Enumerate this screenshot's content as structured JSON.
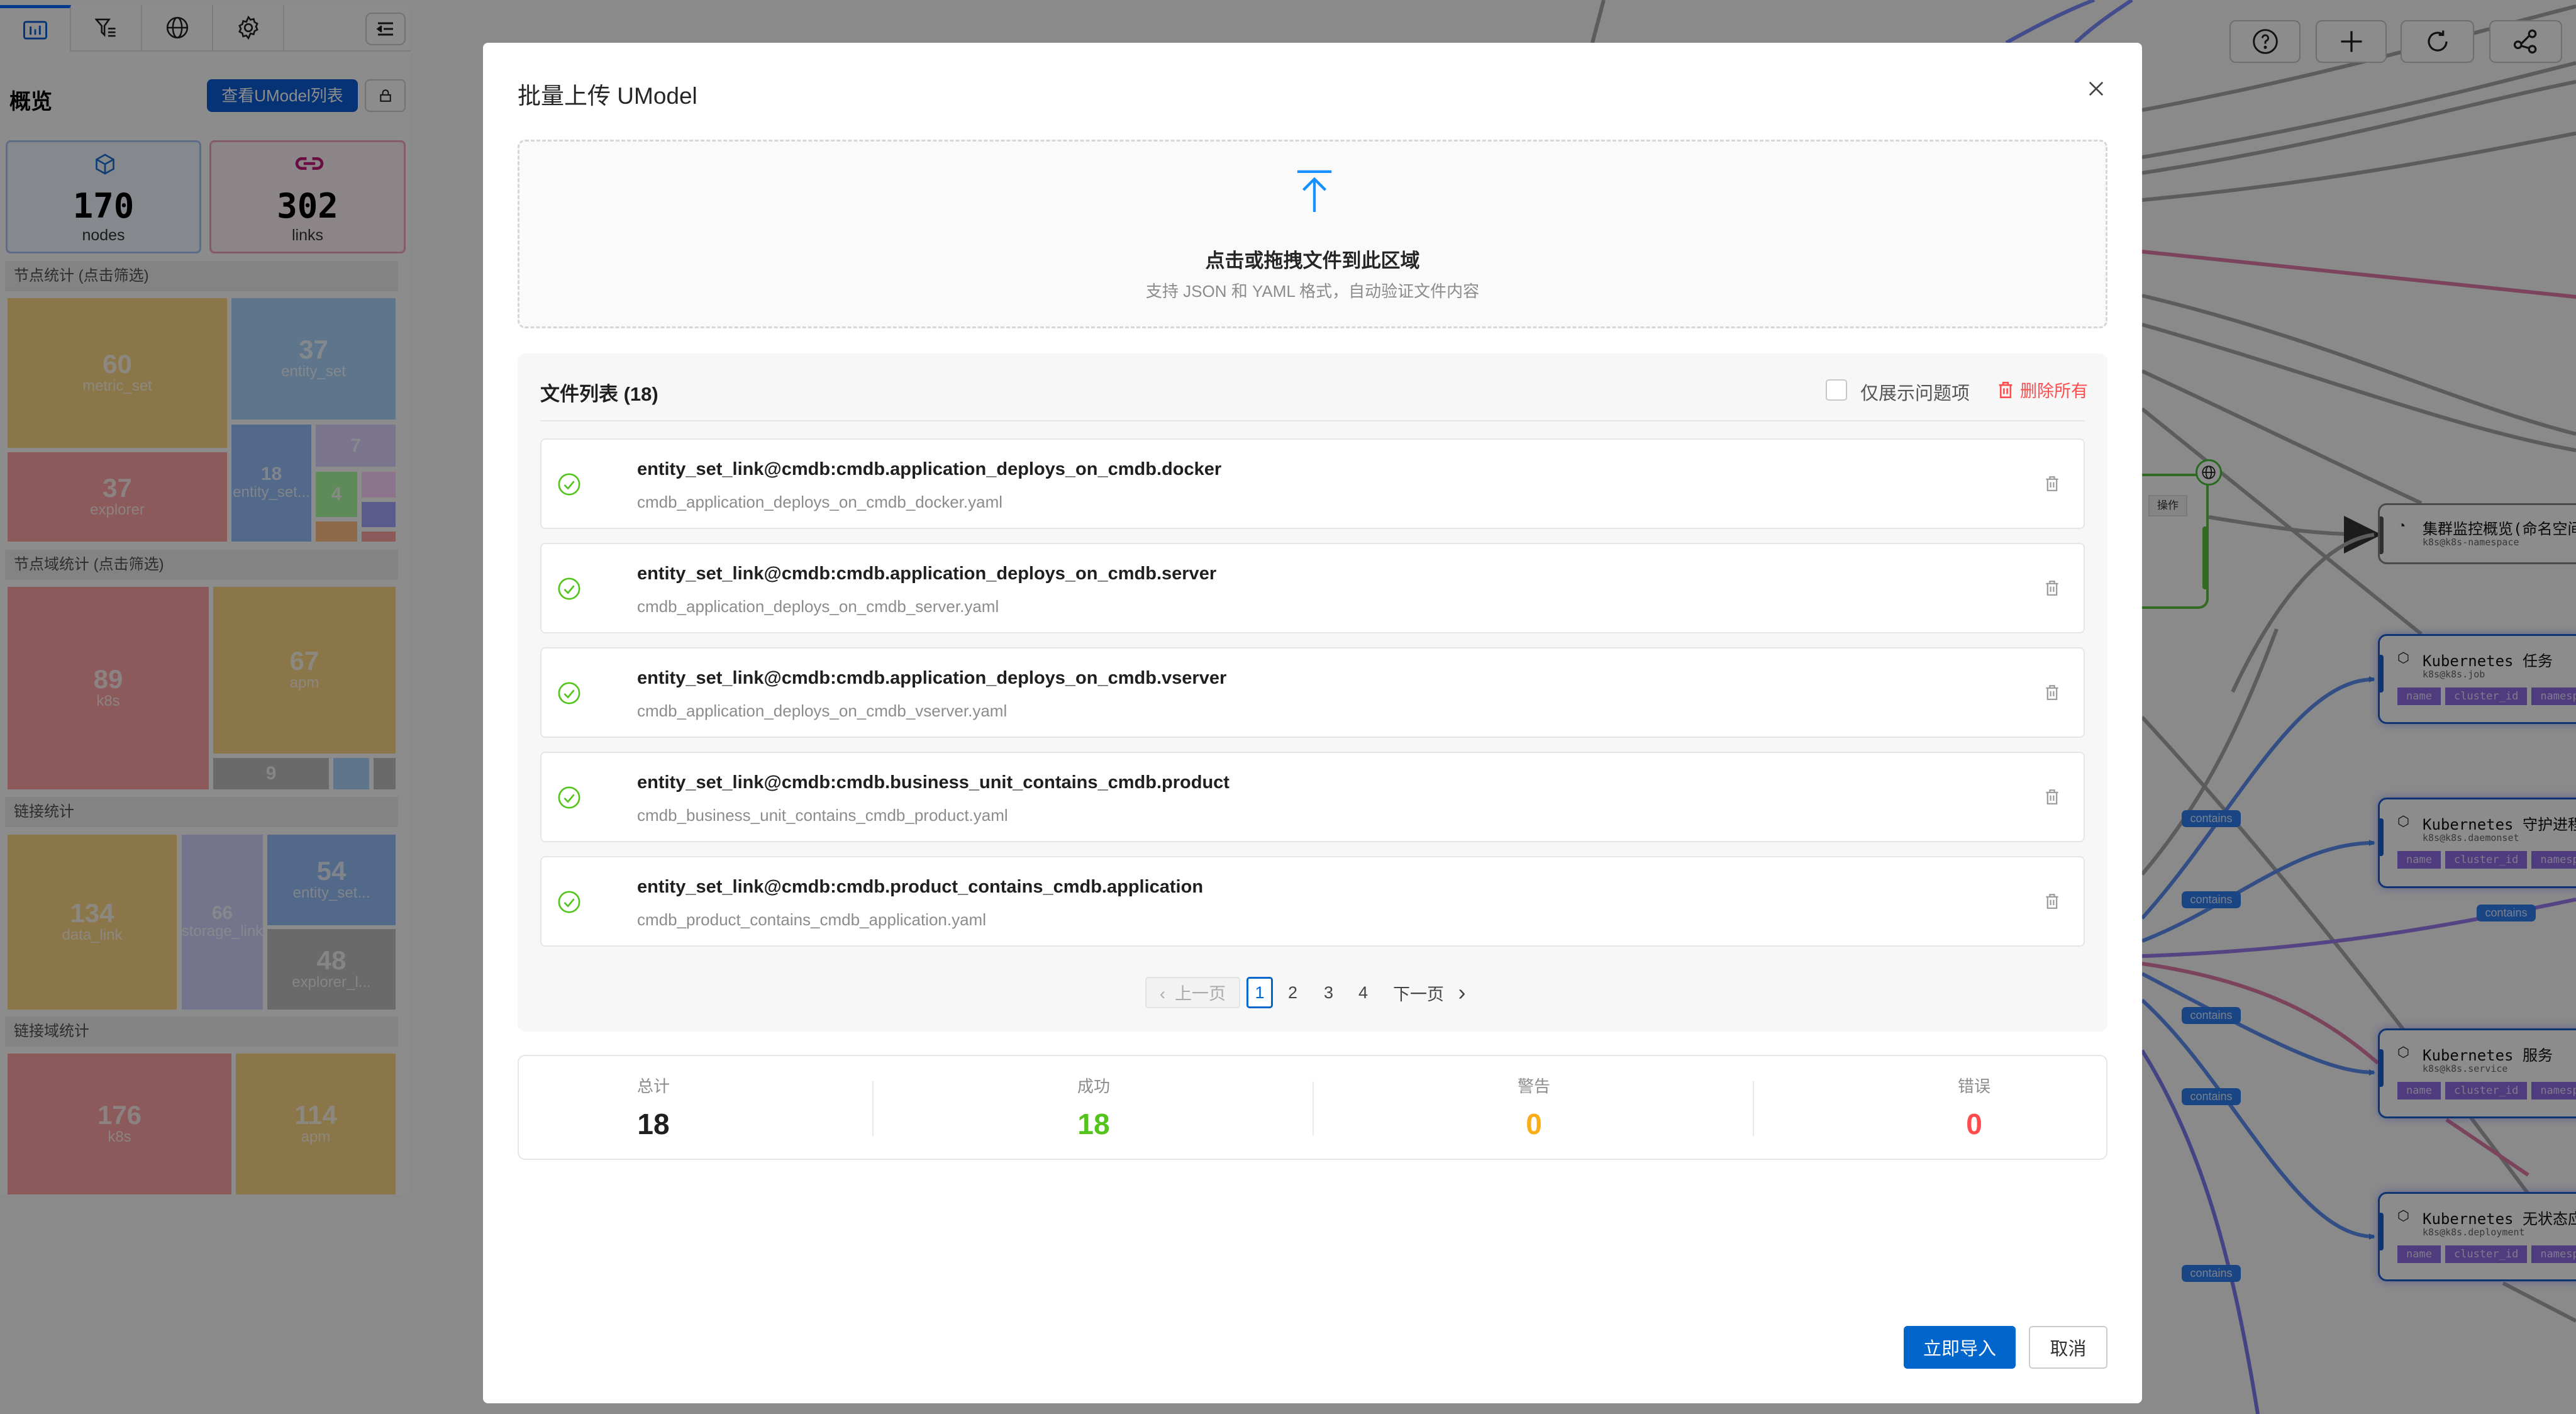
{
  "sidebar": {
    "tabs": [
      {
        "icon": "bar-chart-icon",
        "active": true
      },
      {
        "icon": "filter-list-icon",
        "active": false
      },
      {
        "icon": "globe-icon",
        "active": false
      },
      {
        "icon": "gear-icon",
        "active": false
      }
    ],
    "menu_icon": "collapse-menu-icon",
    "title": "概览",
    "view_list_button": "查看UModel列表",
    "lock_icon": "lock-icon",
    "cards": [
      {
        "icon": "cube-icon",
        "value": "170",
        "label": "nodes",
        "color": "#1a6fd8"
      },
      {
        "icon": "link-icon",
        "value": "302",
        "label": "links",
        "color": "#c2187a"
      }
    ],
    "sections": [
      {
        "title": "节点统计 (点击筛选)",
        "items": [
          {
            "value": "60",
            "label": "metric_set",
            "color": "#fdd886"
          },
          {
            "value": "37",
            "label": "explorer",
            "color": "#ffa4a4"
          },
          {
            "value": "37",
            "label": "entity_set",
            "color": "#add5ff"
          },
          {
            "value": "18",
            "label": "entity_set...",
            "color": "#96bffb"
          },
          {
            "value": "7",
            "label": "",
            "color": "#ded5ff"
          },
          {
            "value": "4",
            "label": "",
            "color": "#adfba4"
          },
          {
            "value": "",
            "label": "",
            "color": "#ffd5ff"
          },
          {
            "value": "",
            "label": "",
            "color": "#a4a4ff"
          },
          {
            "value": "",
            "label": "",
            "color": "#ffc187"
          },
          {
            "value": "",
            "label": "",
            "color": "#ffa4a4"
          }
        ]
      },
      {
        "title": "节点域统计 (点击筛选)",
        "items": [
          {
            "value": "89",
            "label": "k8s",
            "color": "#ffa4a4"
          },
          {
            "value": "67",
            "label": "apm",
            "color": "#fdd886"
          },
          {
            "value": "9",
            "label": "",
            "color": "#c1c1c1"
          },
          {
            "value": "",
            "label": "",
            "color": "#add5ff"
          },
          {
            "value": "",
            "label": "",
            "color": "#c1c1c1"
          }
        ]
      },
      {
        "title": "链接统计",
        "items": [
          {
            "value": "134",
            "label": "data_link",
            "color": "#fdd886"
          },
          {
            "value": "66",
            "label": "storage_link",
            "color": "#d3d5ff"
          },
          {
            "value": "54",
            "label": "entity_set...",
            "color": "#96bffb"
          },
          {
            "value": "48",
            "label": "explorer_l...",
            "color": "#c1c1c1"
          }
        ]
      },
      {
        "title": "链接域统计",
        "items": [
          {
            "value": "176",
            "label": "k8s",
            "color": "#ffa4a4"
          },
          {
            "value": "114",
            "label": "apm",
            "color": "#fdd886"
          }
        ]
      }
    ]
  },
  "toolbar": {
    "icons": [
      "help-icon",
      "plus-icon",
      "refresh-icon",
      "share-icon"
    ]
  },
  "graph": {
    "action_button": "操作",
    "nodes": [
      {
        "title": "集群监控概览(命名空间)",
        "subtitle": "k8s@k8s-namespace",
        "icon": "pie-chart-icon",
        "tags": []
      },
      {
        "title": "Kubernetes 任务",
        "subtitle": "k8s@k8s.job",
        "icon": "cube-icon",
        "tags": [
          "name",
          "cluster_id",
          "namespace"
        ]
      },
      {
        "title": "Kubernetes 守护进程集",
        "subtitle": "k8s@k8s.daemonset",
        "icon": "cube-icon",
        "tags": [
          "name",
          "cluster_id",
          "namespace"
        ]
      },
      {
        "title": "Kubernetes 服务",
        "subtitle": "k8s@k8s.service",
        "icon": "cube-icon",
        "tags": [
          "name",
          "cluster_id",
          "namespace"
        ]
      },
      {
        "title": "Kubernetes 无状态应用",
        "subtitle": "k8s@k8s.deployment",
        "icon": "cube-icon",
        "tags": [
          "name",
          "cluster_id",
          "namespace"
        ]
      }
    ],
    "edge_labels": [
      "contains",
      "contains",
      "contains",
      "contains",
      "contains",
      "contains"
    ]
  },
  "modal": {
    "title": "批量上传 UModel",
    "close_icon": "close-icon",
    "dropzone": {
      "icon": "upload-icon",
      "text": "点击或拖拽文件到此区域",
      "hint": "支持 JSON 和 YAML 格式，自动验证文件内容"
    },
    "file_list": {
      "title": "文件列表 (18)",
      "only_issues_label": "仅展示问题项",
      "only_issues_checked": false,
      "delete_all_label": "删除所有",
      "files": [
        {
          "status": "success",
          "name": "entity_set_link@cmdb:cmdb.application_deploys_on_cmdb.docker",
          "file": "cmdb_application_deploys_on_cmdb_docker.yaml"
        },
        {
          "status": "success",
          "name": "entity_set_link@cmdb:cmdb.application_deploys_on_cmdb.server",
          "file": "cmdb_application_deploys_on_cmdb_server.yaml"
        },
        {
          "status": "success",
          "name": "entity_set_link@cmdb:cmdb.application_deploys_on_cmdb.vserver",
          "file": "cmdb_application_deploys_on_cmdb_vserver.yaml"
        },
        {
          "status": "success",
          "name": "entity_set_link@cmdb:cmdb.business_unit_contains_cmdb.product",
          "file": "cmdb_business_unit_contains_cmdb_product.yaml"
        },
        {
          "status": "success",
          "name": "entity_set_link@cmdb:cmdb.product_contains_cmdb.application",
          "file": "cmdb_product_contains_cmdb_application.yaml"
        }
      ],
      "pagination": {
        "prev": "上一页",
        "next": "下一页",
        "pages": [
          "1",
          "2",
          "3",
          "4"
        ],
        "current": "1"
      }
    },
    "stats": [
      {
        "label": "总计",
        "value": "18",
        "color": "#1f1f1f"
      },
      {
        "label": "成功",
        "value": "18",
        "color": "#52c41a"
      },
      {
        "label": "警告",
        "value": "0",
        "color": "#faad14"
      },
      {
        "label": "错误",
        "value": "0",
        "color": "#ff4d4f"
      }
    ],
    "import_button": "立即导入",
    "cancel_button": "取消",
    "accent": "#0066cc"
  }
}
